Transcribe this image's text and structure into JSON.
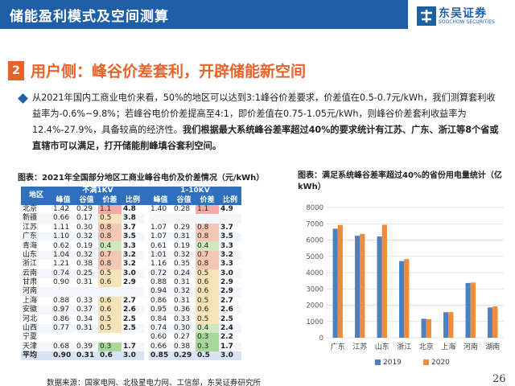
{
  "header": {
    "title": "储能盈利模式及空间测算"
  },
  "logo": {
    "name": "东吴证券",
    "sub": "SOOCHOW SECURITIES"
  },
  "section": {
    "number": "2",
    "title": "用户侧：峰谷价差套利，开辟储能新空间"
  },
  "body": {
    "text_normal": "从2021年国内工商业电价来看，50%的地区可以达到3:1峰谷价差要求，价差值在0.5-0.7元/kWh，我们测算套利收益率为-0.6%~9.8%；若峰谷电价价差提高至4:1，即价差值在0.75-1.05元/kWh，则峰谷价差套利收益率为12.4%-27.9%，具备较高的经济性。",
    "text_bold": "我们根据最大系统峰谷差率超过40%的要求统计有江苏、广东、浙江等8个省或直辖市可以满足，打开储能削峰填谷套利空间。"
  },
  "table": {
    "caption": "图表：2021年全国部分地区工商业峰谷电价及价差情况（元/kWh）",
    "region_header": "地区",
    "group1": "不满1KV",
    "group2": "1-10KV",
    "subheaders": [
      "峰值",
      "谷值",
      "价差",
      "比例",
      "峰值",
      "谷值",
      "价差",
      "比例"
    ],
    "rows": [
      {
        "region": "北京",
        "v": [
          "1.42",
          "0.29",
          "1.1",
          "4.8",
          "1.40",
          "0.28",
          "1.1",
          "4.9"
        ]
      },
      {
        "region": "新疆",
        "v": [
          "0.66",
          "0.17",
          "0.5",
          "3.8",
          "",
          "",
          "",
          ""
        ]
      },
      {
        "region": "江苏",
        "v": [
          "1.11",
          "0.30",
          "0.8",
          "3.7",
          "1.07",
          "0.29",
          "0.8",
          "3.7"
        ]
      },
      {
        "region": "广东",
        "v": [
          "1.10",
          "0.32",
          "0.8",
          "3.5",
          "1.07",
          "0.31",
          "0.8",
          "3.5"
        ]
      },
      {
        "region": "青海",
        "v": [
          "0.62",
          "0.19",
          "0.4",
          "3.3",
          "0.61",
          "0.19",
          "0.4",
          "3.3"
        ]
      },
      {
        "region": "山东",
        "v": [
          "1.04",
          "0.32",
          "0.7",
          "3.2",
          "1.01",
          "0.32",
          "0.7",
          "3.2"
        ]
      },
      {
        "region": "浙江",
        "v": [
          "1.21",
          "0.38",
          "0.8",
          "3.2",
          "1.16",
          "0.35",
          "0.8",
          "3.3"
        ]
      },
      {
        "region": "云南",
        "v": [
          "0.74",
          "0.25",
          "0.5",
          "3.0",
          "0.72",
          "0.24",
          "0.5",
          "3.0"
        ]
      },
      {
        "region": "甘肃",
        "v": [
          "0.90",
          "0.31",
          "0.6",
          "2.9",
          "0.88",
          "0.31",
          "0.6",
          "2.9"
        ]
      },
      {
        "region": "河南",
        "v": [
          "",
          "",
          "",
          "",
          "0.94",
          "0.32",
          "0.6",
          "2.9"
        ]
      },
      {
        "region": "上海",
        "v": [
          "0.88",
          "0.33",
          "0.6",
          "2.7",
          "0.86",
          "0.31",
          "0.5",
          "2.7"
        ]
      },
      {
        "region": "安徽",
        "v": [
          "0.97",
          "0.37",
          "0.6",
          "2.6",
          "0.95",
          "0.36",
          "0.6",
          "2.6"
        ]
      },
      {
        "region": "河北",
        "v": [
          "0.86",
          "0.34",
          "0.5",
          "2.5",
          "0.84",
          "0.33",
          "0.5",
          "2.5"
        ]
      },
      {
        "region": "山西",
        "v": [
          "0.77",
          "0.31",
          "0.5",
          "2.5",
          "0.74",
          "0.30",
          "0.4",
          "2.4"
        ]
      },
      {
        "region": "宁夏",
        "v": [
          "",
          "",
          "",
          "",
          "0.60",
          "0.27",
          "0.3",
          "2.2"
        ]
      },
      {
        "region": "天津",
        "v": [
          "0.68",
          "0.39",
          "0.3",
          "1.7",
          "0.66",
          "0.38",
          "0.3",
          "1.7"
        ]
      }
    ],
    "total": {
      "region": "平均",
      "v": [
        "0.90",
        "0.31",
        "0.6",
        "3.0",
        "0.85",
        "0.29",
        "0.5",
        "3.0"
      ]
    },
    "colors": {
      "peak_high": "#f4aaa6",
      "peak_mid": "#f6c6b4",
      "mid": "#f6e3b8",
      "low": "#cfe8c0",
      "lowest": "#a8d79a",
      "header_blue": "#2e6fbe"
    }
  },
  "source": "数据来源：国家电网、北极星电力网、工信部，东吴证券研究所",
  "page_number": "26",
  "chart_data": {
    "type": "bar",
    "title": "图表：满足系统峰谷差率超过40%的省份用电量统计（亿kWh）",
    "categories": [
      "广东",
      "江苏",
      "山东",
      "浙江",
      "北京",
      "上海",
      "河南",
      "湖南"
    ],
    "series": [
      {
        "name": "2019",
        "color": "#4f7fbd",
        "values": [
          6696,
          6264,
          6219,
          4706,
          1166,
          1569,
          3364,
          1864
        ]
      },
      {
        "name": "2020",
        "color": "#ef8c3a",
        "values": [
          6926,
          6374,
          6940,
          4830,
          1140,
          1576,
          3392,
          1929
        ]
      }
    ],
    "ylim": [
      0,
      8000
    ],
    "yticks": [
      0,
      1000,
      2000,
      3000,
      4000,
      5000,
      6000,
      7000,
      8000
    ],
    "grid": true,
    "legend": "bottom"
  }
}
